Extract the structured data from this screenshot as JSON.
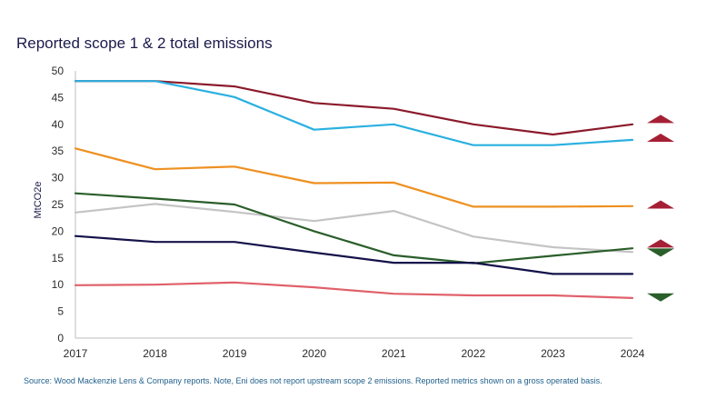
{
  "chart_data": {
    "type": "line",
    "title": "Reported scope 1 & 2 total emissions",
    "xlabel": "",
    "ylabel": "MtCO2e",
    "ylim": [
      0,
      50
    ],
    "yticks": [
      0,
      5,
      10,
      15,
      20,
      25,
      30,
      35,
      40,
      45,
      50
    ],
    "x": [
      "2017",
      "2018",
      "2019",
      "2020",
      "2021",
      "2022",
      "2023",
      "2024"
    ],
    "grid": false,
    "legend": "none",
    "series": [
      {
        "color": "#8b1a2b",
        "values": [
          48.1,
          48.1,
          47.1,
          44.0,
          42.9,
          40.0,
          38.1,
          40.0
        ]
      },
      {
        "color": "#2ab0e0",
        "values": [
          48.1,
          48.1,
          45.1,
          39.0,
          40.0,
          36.1,
          36.1,
          37.1
        ]
      },
      {
        "color": "#ee9020",
        "values": [
          35.5,
          31.6,
          32.1,
          29.0,
          29.1,
          24.6,
          24.6,
          24.7
        ]
      },
      {
        "color": "#c4c4c4",
        "values": [
          23.5,
          25.1,
          23.6,
          21.9,
          23.8,
          19.0,
          17.0,
          16.1
        ]
      },
      {
        "color": "#2a5e2a",
        "values": [
          27.1,
          26.1,
          25.0,
          20.0,
          15.5,
          14.0,
          15.4,
          16.8
        ]
      },
      {
        "color": "#14124a",
        "values": [
          19.1,
          18.0,
          18.0,
          16.0,
          14.1,
          14.1,
          12.0,
          12.0
        ]
      },
      {
        "color": "#e0606a",
        "values": [
          9.9,
          10.0,
          10.4,
          9.5,
          8.3,
          8.0,
          8.0,
          7.5
        ]
      }
    ],
    "markers": [
      {
        "direction": "up",
        "color": "#a52035",
        "value": 41
      },
      {
        "direction": "up",
        "color": "#a52035",
        "value": 37.5
      },
      {
        "direction": "up",
        "color": "#a52035",
        "value": 25
      },
      {
        "direction": "up",
        "color": "#a52035",
        "value": 17.7
      },
      {
        "direction": "down",
        "color": "#2a5e2a",
        "value": 16
      },
      {
        "direction": "down",
        "color": "#2a5e2a",
        "value": 7.6
      }
    ]
  },
  "source_note": "Source: Wood Mackenzie Lens & Company reports. Note, Eni does not report upstream scope 2 emissions. Reported metrics shown on a gross operated basis."
}
